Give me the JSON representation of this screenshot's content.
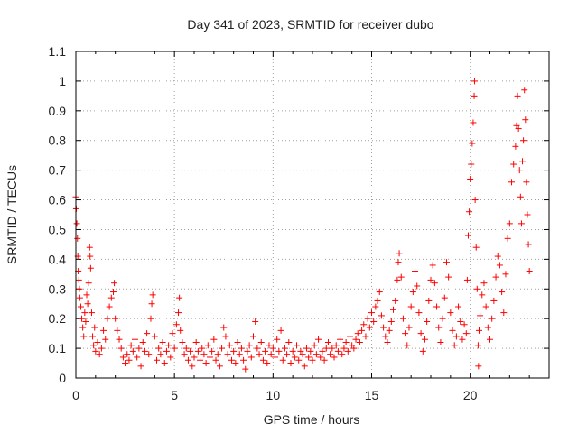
{
  "chart_data": {
    "type": "scatter",
    "title": "Day 341 of 2023, SRMTID for receiver dubo",
    "xlabel": "GPS time / hours",
    "ylabel": "SRMTID / TECUs",
    "xlim": [
      0,
      24
    ],
    "ylim": [
      0,
      1.1
    ],
    "x_ticks": [
      0,
      5,
      10,
      15,
      20
    ],
    "x_tick_labels": [
      "0",
      "5",
      "10",
      "15",
      "20"
    ],
    "y_ticks": [
      0,
      0.1,
      0.2,
      0.3,
      0.4,
      0.5,
      0.6,
      0.7,
      0.8,
      0.9,
      1.0,
      1.1
    ],
    "y_tick_labels": [
      "0",
      "0.1",
      "0.2",
      "0.3",
      "0.4",
      "0.5",
      "0.6",
      "0.7",
      "0.8",
      "0.9",
      "1",
      "1.1"
    ],
    "grid": true,
    "marker": "+",
    "color": "#ff0000",
    "series": [
      {
        "name": "SRMTID",
        "points": [
          [
            0.0,
            0.61
          ],
          [
            0.02,
            0.57
          ],
          [
            0.05,
            0.52
          ],
          [
            0.08,
            0.47
          ],
          [
            0.1,
            0.41
          ],
          [
            0.12,
            0.36
          ],
          [
            0.15,
            0.33
          ],
          [
            0.18,
            0.3
          ],
          [
            0.2,
            0.27
          ],
          [
            0.25,
            0.24
          ],
          [
            0.3,
            0.2
          ],
          [
            0.35,
            0.17
          ],
          [
            0.4,
            0.14
          ],
          [
            0.45,
            0.22
          ],
          [
            0.5,
            0.19
          ],
          [
            0.55,
            0.28
          ],
          [
            0.6,
            0.25
          ],
          [
            0.65,
            0.32
          ],
          [
            0.7,
            0.44
          ],
          [
            0.72,
            0.41
          ],
          [
            0.75,
            0.37
          ],
          [
            0.8,
            0.22
          ],
          [
            0.85,
            0.14
          ],
          [
            0.9,
            0.11
          ],
          [
            0.95,
            0.17
          ],
          [
            1.0,
            0.09
          ],
          [
            1.1,
            0.12
          ],
          [
            1.2,
            0.08
          ],
          [
            1.3,
            0.1
          ],
          [
            1.4,
            0.16
          ],
          [
            1.5,
            0.13
          ],
          [
            1.6,
            0.2
          ],
          [
            1.7,
            0.24
          ],
          [
            1.8,
            0.27
          ],
          [
            1.9,
            0.29
          ],
          [
            1.95,
            0.32
          ],
          [
            2.0,
            0.2
          ],
          [
            2.1,
            0.16
          ],
          [
            2.2,
            0.13
          ],
          [
            2.3,
            0.1
          ],
          [
            2.4,
            0.07
          ],
          [
            2.5,
            0.05
          ],
          [
            2.6,
            0.08
          ],
          [
            2.7,
            0.06
          ],
          [
            2.8,
            0.11
          ],
          [
            2.9,
            0.09
          ],
          [
            3.0,
            0.13
          ],
          [
            3.1,
            0.07
          ],
          [
            3.2,
            0.1
          ],
          [
            3.3,
            0.04
          ],
          [
            3.4,
            0.12
          ],
          [
            3.5,
            0.09
          ],
          [
            3.6,
            0.15
          ],
          [
            3.7,
            0.08
          ],
          [
            3.8,
            0.2
          ],
          [
            3.85,
            0.25
          ],
          [
            3.9,
            0.28
          ],
          [
            4.0,
            0.14
          ],
          [
            4.1,
            0.06
          ],
          [
            4.2,
            0.1
          ],
          [
            4.3,
            0.08
          ],
          [
            4.4,
            0.12
          ],
          [
            4.5,
            0.05
          ],
          [
            4.6,
            0.09
          ],
          [
            4.7,
            0.11
          ],
          [
            4.8,
            0.07
          ],
          [
            4.9,
            0.15
          ],
          [
            5.0,
            0.1
          ],
          [
            5.1,
            0.18
          ],
          [
            5.2,
            0.22
          ],
          [
            5.25,
            0.27
          ],
          [
            5.3,
            0.16
          ],
          [
            5.4,
            0.12
          ],
          [
            5.5,
            0.08
          ],
          [
            5.6,
            0.1
          ],
          [
            5.7,
            0.06
          ],
          [
            5.8,
            0.09
          ],
          [
            5.9,
            0.04
          ],
          [
            6.0,
            0.07
          ],
          [
            6.1,
            0.12
          ],
          [
            6.2,
            0.09
          ],
          [
            6.3,
            0.06
          ],
          [
            6.4,
            0.1
          ],
          [
            6.5,
            0.08
          ],
          [
            6.6,
            0.05
          ],
          [
            6.7,
            0.11
          ],
          [
            6.8,
            0.07
          ],
          [
            6.9,
            0.09
          ],
          [
            7.0,
            0.13
          ],
          [
            7.1,
            0.06
          ],
          [
            7.2,
            0.08
          ],
          [
            7.3,
            0.04
          ],
          [
            7.4,
            0.1
          ],
          [
            7.5,
            0.17
          ],
          [
            7.6,
            0.14
          ],
          [
            7.7,
            0.08
          ],
          [
            7.8,
            0.11
          ],
          [
            7.9,
            0.06
          ],
          [
            8.0,
            0.09
          ],
          [
            8.1,
            0.05
          ],
          [
            8.2,
            0.12
          ],
          [
            8.3,
            0.08
          ],
          [
            8.4,
            0.1
          ],
          [
            8.5,
            0.06
          ],
          [
            8.6,
            0.03
          ],
          [
            8.7,
            0.09
          ],
          [
            8.8,
            0.11
          ],
          [
            8.9,
            0.07
          ],
          [
            9.0,
            0.14
          ],
          [
            9.1,
            0.19
          ],
          [
            9.2,
            0.1
          ],
          [
            9.3,
            0.08
          ],
          [
            9.4,
            0.12
          ],
          [
            9.5,
            0.06
          ],
          [
            9.6,
            0.09
          ],
          [
            9.7,
            0.05
          ],
          [
            9.8,
            0.11
          ],
          [
            9.9,
            0.08
          ],
          [
            10.0,
            0.1
          ],
          [
            10.1,
            0.07
          ],
          [
            10.2,
            0.13
          ],
          [
            10.3,
            0.09
          ],
          [
            10.4,
            0.16
          ],
          [
            10.5,
            0.06
          ],
          [
            10.6,
            0.1
          ],
          [
            10.7,
            0.08
          ],
          [
            10.8,
            0.12
          ],
          [
            10.9,
            0.05
          ],
          [
            11.0,
            0.09
          ],
          [
            11.1,
            0.07
          ],
          [
            11.2,
            0.11
          ],
          [
            11.3,
            0.06
          ],
          [
            11.4,
            0.09
          ],
          [
            11.5,
            0.08
          ],
          [
            11.6,
            0.04
          ],
          [
            11.7,
            0.1
          ],
          [
            11.8,
            0.07
          ],
          [
            11.9,
            0.09
          ],
          [
            12.0,
            0.06
          ],
          [
            12.1,
            0.11
          ],
          [
            12.2,
            0.08
          ],
          [
            12.3,
            0.13
          ],
          [
            12.4,
            0.07
          ],
          [
            12.5,
            0.09
          ],
          [
            12.6,
            0.06
          ],
          [
            12.7,
            0.1
          ],
          [
            12.8,
            0.12
          ],
          [
            12.9,
            0.08
          ],
          [
            13.0,
            0.1
          ],
          [
            13.1,
            0.07
          ],
          [
            13.2,
            0.11
          ],
          [
            13.3,
            0.09
          ],
          [
            13.4,
            0.13
          ],
          [
            13.5,
            0.08
          ],
          [
            13.6,
            0.1
          ],
          [
            13.7,
            0.12
          ],
          [
            13.8,
            0.09
          ],
          [
            13.9,
            0.14
          ],
          [
            14.0,
            0.11
          ],
          [
            14.1,
            0.1
          ],
          [
            14.2,
            0.13
          ],
          [
            14.3,
            0.15
          ],
          [
            14.4,
            0.12
          ],
          [
            14.5,
            0.16
          ],
          [
            14.6,
            0.18
          ],
          [
            14.7,
            0.14
          ],
          [
            14.8,
            0.2
          ],
          [
            14.9,
            0.17
          ],
          [
            15.0,
            0.22
          ],
          [
            15.1,
            0.19
          ],
          [
            15.2,
            0.24
          ],
          [
            15.3,
            0.26
          ],
          [
            15.4,
            0.29
          ],
          [
            15.5,
            0.21
          ],
          [
            15.6,
            0.17
          ],
          [
            15.7,
            0.14
          ],
          [
            15.8,
            0.12
          ],
          [
            15.9,
            0.16
          ],
          [
            16.0,
            0.19
          ],
          [
            16.1,
            0.23
          ],
          [
            16.2,
            0.26
          ],
          [
            16.3,
            0.33
          ],
          [
            16.35,
            0.39
          ],
          [
            16.4,
            0.42
          ],
          [
            16.5,
            0.34
          ],
          [
            16.6,
            0.2
          ],
          [
            16.7,
            0.15
          ],
          [
            16.8,
            0.11
          ],
          [
            16.9,
            0.17
          ],
          [
            17.0,
            0.24
          ],
          [
            17.1,
            0.29
          ],
          [
            17.2,
            0.36
          ],
          [
            17.3,
            0.31
          ],
          [
            17.4,
            0.22
          ],
          [
            17.5,
            0.15
          ],
          [
            17.6,
            0.09
          ],
          [
            17.7,
            0.13
          ],
          [
            17.8,
            0.19
          ],
          [
            17.9,
            0.26
          ],
          [
            18.0,
            0.33
          ],
          [
            18.1,
            0.38
          ],
          [
            18.2,
            0.32
          ],
          [
            18.3,
            0.24
          ],
          [
            18.4,
            0.17
          ],
          [
            18.5,
            0.12
          ],
          [
            18.6,
            0.2
          ],
          [
            18.7,
            0.27
          ],
          [
            18.8,
            0.39
          ],
          [
            18.9,
            0.34
          ],
          [
            19.0,
            0.22
          ],
          [
            19.1,
            0.16
          ],
          [
            19.2,
            0.11
          ],
          [
            19.3,
            0.14
          ],
          [
            19.4,
            0.24
          ],
          [
            19.5,
            0.19
          ],
          [
            19.6,
            0.13
          ],
          [
            19.7,
            0.18
          ],
          [
            19.8,
            0.15
          ],
          [
            19.85,
            0.33
          ],
          [
            19.9,
            0.48
          ],
          [
            19.95,
            0.56
          ],
          [
            20.0,
            0.67
          ],
          [
            20.05,
            0.72
          ],
          [
            20.1,
            0.79
          ],
          [
            20.15,
            0.86
          ],
          [
            20.2,
            0.95
          ],
          [
            20.22,
            1.0
          ],
          [
            20.25,
            0.6
          ],
          [
            20.3,
            0.44
          ],
          [
            20.35,
            0.3
          ],
          [
            20.4,
            0.11
          ],
          [
            20.42,
            0.04
          ],
          [
            20.45,
            0.16
          ],
          [
            20.5,
            0.21
          ],
          [
            20.6,
            0.28
          ],
          [
            20.7,
            0.32
          ],
          [
            20.8,
            0.24
          ],
          [
            20.9,
            0.17
          ],
          [
            21.0,
            0.13
          ],
          [
            21.1,
            0.2
          ],
          [
            21.2,
            0.26
          ],
          [
            21.3,
            0.34
          ],
          [
            21.4,
            0.41
          ],
          [
            21.5,
            0.38
          ],
          [
            21.6,
            0.29
          ],
          [
            21.7,
            0.22
          ],
          [
            21.8,
            0.35
          ],
          [
            21.9,
            0.47
          ],
          [
            22.0,
            0.52
          ],
          [
            22.1,
            0.66
          ],
          [
            22.2,
            0.72
          ],
          [
            22.3,
            0.78
          ],
          [
            22.35,
            0.85
          ],
          [
            22.4,
            0.95
          ],
          [
            22.45,
            0.84
          ],
          [
            22.5,
            0.7
          ],
          [
            22.55,
            0.61
          ],
          [
            22.6,
            0.52
          ],
          [
            22.65,
            0.73
          ],
          [
            22.7,
            0.8
          ],
          [
            22.75,
            0.97
          ],
          [
            22.8,
            0.87
          ],
          [
            22.85,
            0.66
          ],
          [
            22.9,
            0.55
          ],
          [
            22.95,
            0.45
          ],
          [
            23.0,
            0.36
          ]
        ]
      }
    ]
  }
}
